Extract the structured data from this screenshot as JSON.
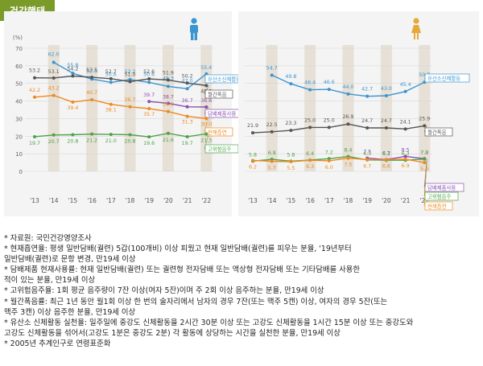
{
  "title": "건강행태",
  "chart_data": [
    {
      "type": "line",
      "id": "male",
      "ylabel": "(%)",
      "ylim": [
        0,
        70
      ],
      "yticks": [
        0,
        10,
        20,
        30,
        40,
        50,
        60,
        70
      ],
      "grid": true,
      "categories": [
        "'13",
        "'14",
        "'15",
        "'16",
        "'17",
        "'18",
        "'19",
        "'20",
        "'21",
        "'22"
      ],
      "series": [
        {
          "name": "유산소신체활동",
          "color": "#3a95d0",
          "values": [
            null,
            62.0,
            55.8,
            52.5,
            50.6,
            52.2,
            50.6,
            48.3,
            47.0,
            55.4
          ],
          "labels": [
            "",
            "62.0",
            "55.8",
            "52.5",
            "50.6",
            "52.2",
            "50.6",
            "48.3",
            "47.0",
            "55.4"
          ]
        },
        {
          "name": "월간폭음",
          "color": "#555555",
          "values": [
            53.2,
            53.1,
            54.2,
            53.5,
            52.7,
            51.0,
            52.6,
            51.9,
            50.2,
            48.8
          ],
          "labels": [
            "53.2",
            "53.1",
            "54.2",
            "53.5",
            "52.7",
            "51.0",
            "52.6",
            "51.9",
            "50.2",
            "48.8"
          ]
        },
        {
          "name": "담배제품사용",
          "color": "#8a4fb0",
          "values": [
            null,
            null,
            null,
            null,
            null,
            null,
            39.7,
            38.7,
            36.7,
            36.6
          ],
          "labels": [
            "",
            "",
            "",
            "",
            "",
            "",
            "39.7",
            "38.7",
            "36.7",
            "36.6"
          ]
        },
        {
          "name": "현재흡연",
          "color": "#ee8a1e",
          "values": [
            42.2,
            43.2,
            39.4,
            40.7,
            38.1,
            36.7,
            35.7,
            34.0,
            31.3,
            30.0
          ],
          "labels": [
            "42.2",
            "43.2",
            "39.4",
            "40.7",
            "38.1",
            "36.7",
            "35.7",
            "34.0",
            "31.3",
            "30.0"
          ]
        },
        {
          "name": "고위험음주",
          "color": "#4ea34a",
          "values": [
            19.7,
            20.7,
            20.8,
            21.2,
            21.0,
            20.8,
            19.6,
            21.6,
            19.7,
            21.3
          ],
          "labels": [
            "19.7",
            "20.7",
            "20.8",
            "21.2",
            "21.0",
            "20.8",
            "19.6",
            "21.6",
            "19.7",
            "21.3"
          ]
        }
      ]
    },
    {
      "type": "line",
      "id": "female",
      "ylim": [
        0,
        70
      ],
      "grid": true,
      "categories": [
        "'13",
        "'14",
        "'15",
        "'16",
        "'17",
        "'18",
        "'19",
        "'20",
        "'21",
        "'22"
      ],
      "series": [
        {
          "name": "유산소신체활동",
          "color": "#3a95d0",
          "values": [
            null,
            54.7,
            49.8,
            46.4,
            46.6,
            44.0,
            42.7,
            43.0,
            45.4,
            50.7
          ],
          "labels": [
            "",
            "54.7",
            "49.8",
            "46.4",
            "46.6",
            "44.0",
            "42.7",
            "43.0",
            "45.4",
            "50.7"
          ]
        },
        {
          "name": "월간폭음",
          "color": "#555555",
          "values": [
            21.9,
            22.5,
            23.3,
            25.0,
            25.0,
            26.9,
            24.7,
            24.7,
            24.1,
            25.9
          ],
          "labels": [
            "21.9",
            "22.5",
            "23.3",
            "25.0",
            "25.0",
            "26.9",
            "24.7",
            "24.7",
            "24.1",
            "25.9"
          ]
        },
        {
          "name": "담배제품사용",
          "color": "#8a4fb0",
          "values": [
            null,
            null,
            null,
            null,
            null,
            null,
            7.5,
            6.7,
            8.5,
            7.2
          ],
          "labels": [
            "",
            "",
            "",
            "",
            "",
            "",
            "7.5",
            "6.7",
            "8.5",
            "7.2"
          ]
        },
        {
          "name": "고위험음주",
          "color": "#4ea34a",
          "values": [
            5.8,
            6.8,
            5.8,
            6.4,
            7.2,
            8.4,
            6.5,
            6.3,
            6.3,
            7.0
          ],
          "labels": [
            "5.8",
            "6.8",
            "5.8",
            "6.4",
            "7.2",
            "8.4",
            "6.5",
            "6.3",
            "6.3",
            "7.0"
          ]
        },
        {
          "name": "현재흡연",
          "color": "#ee8a1e",
          "values": [
            6.2,
            5.7,
            5.5,
            6.3,
            6.0,
            7.5,
            6.7,
            6.6,
            6.9,
            5.0
          ],
          "labels": [
            "6.2",
            "5.7",
            "5.5",
            "6.3",
            "6.0",
            "7.5",
            "6.7",
            "6.6",
            "6.9",
            "5.0"
          ]
        }
      ]
    }
  ],
  "notes": [
    "* 자료원: 국민건강영양조사",
    "* 현재흡연율: 평생 일반담배(궐련) 5갑(100개비) 이상 피웠고 현재 일반담배(궐련)를 피우는 분율, '19년부터",
    "   일반담배(궐련)로 문항 변경, 만19세 이상",
    "* 담배제품 현재사용률: 현재 일반담배(궐련) 또는 궐련형 전자담배 또는 액상형 전자담배 또는 기타담배를 사용한",
    "   적이 있는 분율, 만19세 이상",
    "* 고위험음주율: 1회 평균 음주량이 7잔 이상(여자 5잔)이며 주 2회 이상 음주하는 분율, 만19세 이상",
    "* 월간폭음률: 최근 1년 동안 월1회 이상 한 번의 술자리에서 남자의 경우 7잔(또는 맥주 5캔) 이상, 여자의 경우 5잔(또는",
    "   맥주 3캔) 이상 음주한 분율, 만19세 이상",
    "* 유산소 신체활동 실천율: 일주일에 중강도 신체활동을 2시간 30분 이상 또는 고강도 신체활동을 1시간 15분 이상 또는 중강도와",
    "   고강도 신체활동을 섞어서(고강도 1분은 중강도 2분) 각 활동에 상당하는 시간을 실천한 분율, 만19세 이상",
    "* 2005년 추계인구로 연령표준화"
  ],
  "icons": {
    "male": "male-person-icon",
    "female": "female-person-icon"
  }
}
